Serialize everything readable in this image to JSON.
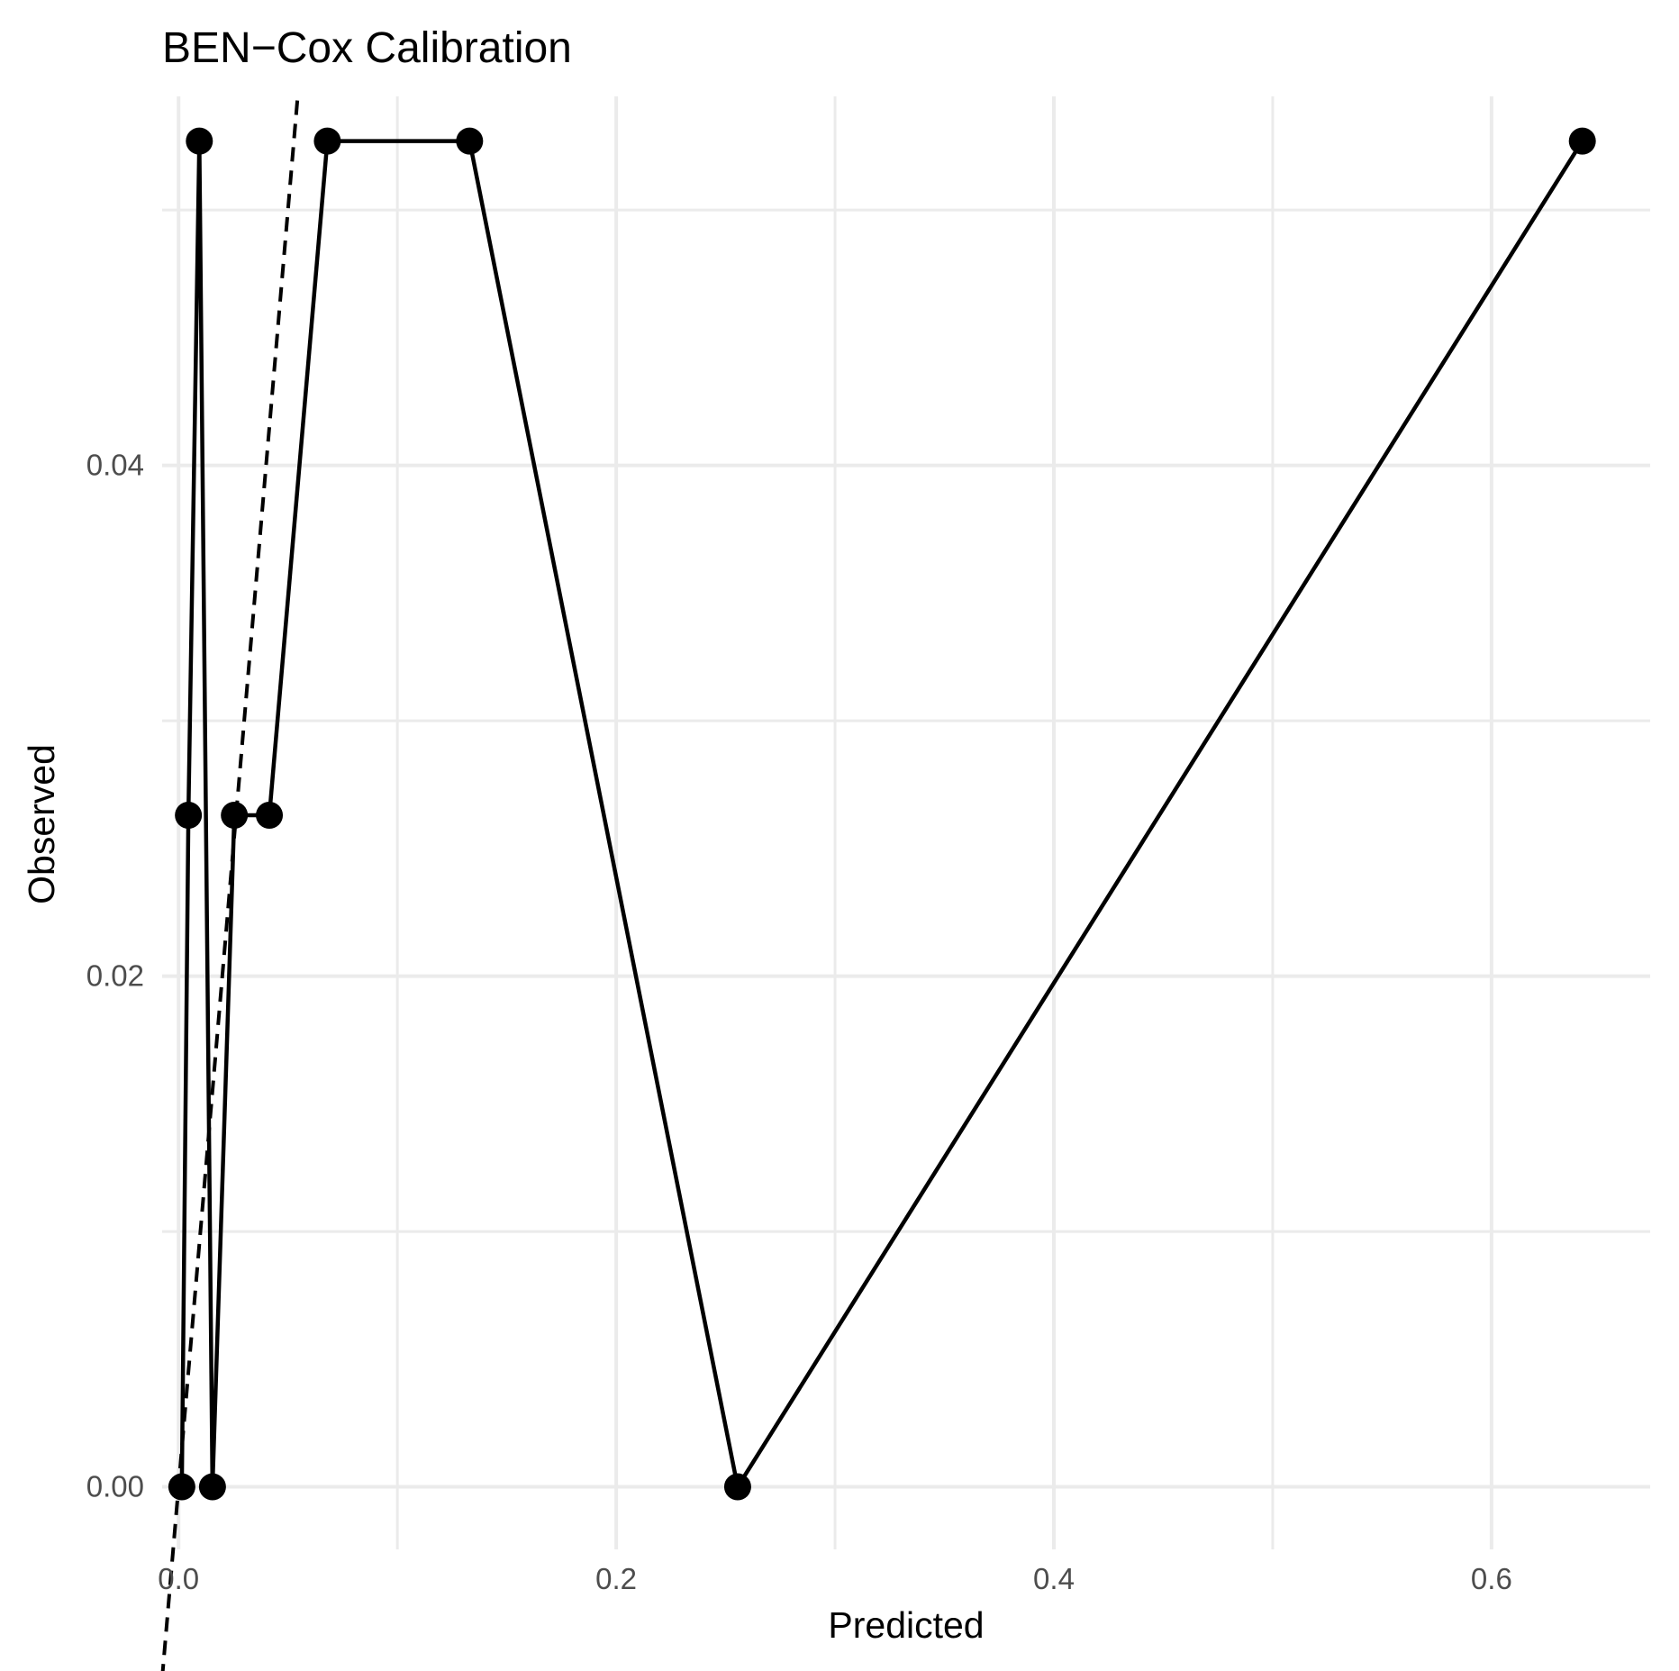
{
  "chart_data": {
    "type": "line",
    "title": "BEN−Cox Calibration",
    "xlabel": "Predicted",
    "ylabel": "Observed",
    "xlim": [
      -0.0075,
      0.6725
    ],
    "ylim": [
      -0.00245,
      0.05445
    ],
    "x_ticks": [
      0.0,
      0.2,
      0.4,
      0.6
    ],
    "x_tick_labels": [
      "0.0",
      "0.2",
      "0.4",
      "0.6"
    ],
    "x_minor_ticks": [
      0.1,
      0.3,
      0.5
    ],
    "y_ticks": [
      0.0,
      0.02,
      0.04
    ],
    "y_tick_labels": [
      "0.00",
      "0.02",
      "0.04"
    ],
    "y_minor_ticks": [
      0.01,
      0.03,
      0.05
    ],
    "grid": true,
    "reference_line": {
      "style": "dashed",
      "slope": 1,
      "intercept": 0
    },
    "series": [
      {
        "points": [
          {
            "x": 0.0015,
            "y": 0.0
          },
          {
            "x": 0.0045,
            "y": 0.0263
          },
          {
            "x": 0.0095,
            "y": 0.0527
          },
          {
            "x": 0.0155,
            "y": 0.0
          },
          {
            "x": 0.0255,
            "y": 0.0263
          },
          {
            "x": 0.0415,
            "y": 0.0263
          },
          {
            "x": 0.068,
            "y": 0.0527
          },
          {
            "x": 0.133,
            "y": 0.0527
          },
          {
            "x": 0.2555,
            "y": 0.0
          },
          {
            "x": 0.6415,
            "y": 0.0527
          }
        ]
      }
    ]
  }
}
